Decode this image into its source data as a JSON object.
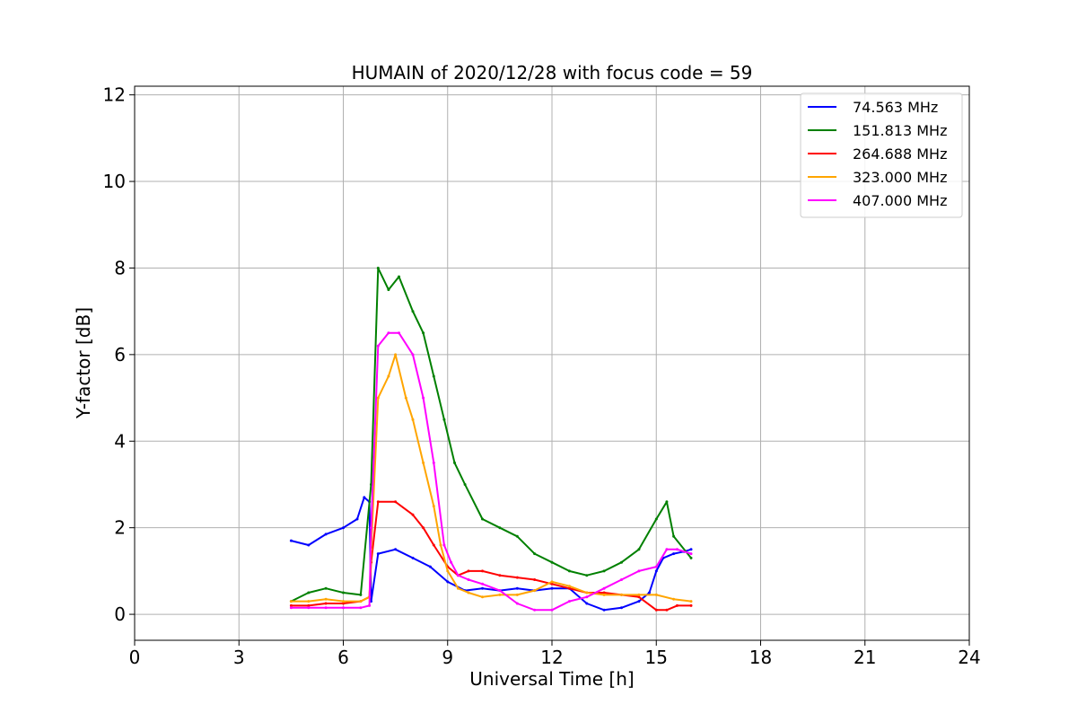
{
  "chart_data": {
    "type": "line",
    "title": "HUMAIN of 2020/12/28 with focus code = 59",
    "xlabel": "Universal Time [h]",
    "ylabel": "Y-factor [dB]",
    "xlim": [
      0,
      24
    ],
    "ylim": [
      -0.6,
      12.2
    ],
    "xticks": [
      0,
      3,
      6,
      9,
      12,
      15,
      18,
      21,
      24
    ],
    "xtick_labels": [
      "0",
      "3",
      "6",
      "9",
      "12",
      "15",
      "18",
      "21",
      "24"
    ],
    "yticks": [
      0,
      2,
      4,
      6,
      8,
      10,
      12
    ],
    "ytick_labels": [
      "0",
      "2",
      "4",
      "6",
      "8",
      "10",
      "12"
    ],
    "grid": true,
    "legend_position": "top-right",
    "series": [
      {
        "name": "74.563 MHz",
        "legend_label": " 74.563 MHz",
        "color": "#0000ff",
        "x": [
          4.5,
          5.0,
          5.5,
          6.0,
          6.4,
          6.6,
          6.75,
          6.8,
          7.0,
          7.5,
          8.0,
          8.5,
          9.0,
          9.5,
          10.0,
          10.5,
          11.0,
          11.5,
          12.0,
          12.5,
          13.0,
          13.5,
          14.0,
          14.5,
          14.8,
          15.0,
          15.2,
          15.5,
          15.8,
          16.0
        ],
        "y": [
          1.7,
          1.6,
          1.85,
          2.0,
          2.2,
          2.7,
          2.6,
          0.3,
          1.4,
          1.5,
          1.3,
          1.1,
          0.75,
          0.55,
          0.6,
          0.55,
          0.6,
          0.55,
          0.6,
          0.6,
          0.25,
          0.1,
          0.15,
          0.3,
          0.5,
          1.0,
          1.3,
          1.4,
          1.45,
          1.5
        ]
      },
      {
        "name": "151.813 MHz",
        "legend_label": "151.813 MHz",
        "color": "#008000",
        "x": [
          4.5,
          5.0,
          5.5,
          6.0,
          6.5,
          6.8,
          7.0,
          7.3,
          7.6,
          8.0,
          8.3,
          8.6,
          8.9,
          9.2,
          9.5,
          10.0,
          10.5,
          11.0,
          11.5,
          12.0,
          12.5,
          13.0,
          13.5,
          14.0,
          14.5,
          15.0,
          15.3,
          15.5,
          16.0
        ],
        "y": [
          0.3,
          0.5,
          0.6,
          0.5,
          0.45,
          3.0,
          8.0,
          7.5,
          7.8,
          7.0,
          6.5,
          5.5,
          4.5,
          3.5,
          3.0,
          2.2,
          2.0,
          1.8,
          1.4,
          1.2,
          1.0,
          0.9,
          1.0,
          1.2,
          1.5,
          2.2,
          2.6,
          1.8,
          1.3
        ]
      },
      {
        "name": "264.688 MHz",
        "legend_label": "264.688 MHz",
        "color": "#ff0000",
        "x": [
          4.5,
          5.0,
          5.5,
          6.0,
          6.5,
          6.75,
          6.8,
          7.0,
          7.5,
          8.0,
          8.3,
          8.6,
          9.0,
          9.3,
          9.6,
          10.0,
          10.5,
          11.0,
          11.5,
          12.0,
          12.5,
          13.0,
          13.5,
          14.0,
          14.5,
          15.0,
          15.3,
          15.6,
          16.0
        ],
        "y": [
          0.2,
          0.2,
          0.25,
          0.25,
          0.3,
          0.4,
          1.2,
          2.6,
          2.6,
          2.3,
          2.0,
          1.6,
          1.1,
          0.9,
          1.0,
          1.0,
          0.9,
          0.85,
          0.8,
          0.7,
          0.6,
          0.5,
          0.5,
          0.45,
          0.4,
          0.1,
          0.1,
          0.2,
          0.2
        ]
      },
      {
        "name": "323.000 MHz",
        "legend_label": "323.000 MHz",
        "color": "#ffa500",
        "x": [
          4.5,
          5.0,
          5.5,
          6.0,
          6.5,
          6.75,
          6.8,
          7.0,
          7.3,
          7.5,
          7.8,
          8.0,
          8.3,
          8.6,
          8.8,
          9.0,
          9.3,
          9.6,
          10.0,
          10.5,
          11.0,
          11.5,
          12.0,
          12.5,
          13.0,
          13.5,
          14.0,
          14.5,
          15.0,
          15.5,
          16.0
        ],
        "y": [
          0.3,
          0.3,
          0.35,
          0.3,
          0.3,
          0.4,
          1.5,
          5.0,
          5.5,
          6.0,
          5.0,
          4.5,
          3.5,
          2.5,
          1.6,
          1.0,
          0.6,
          0.5,
          0.4,
          0.45,
          0.45,
          0.55,
          0.75,
          0.65,
          0.5,
          0.45,
          0.45,
          0.45,
          0.45,
          0.35,
          0.3
        ]
      },
      {
        "name": "407.000 MHz",
        "legend_label": "407.000 MHz",
        "color": "#ff00ff",
        "x": [
          4.5,
          5.0,
          5.5,
          6.0,
          6.5,
          6.75,
          6.8,
          7.0,
          7.3,
          7.6,
          8.0,
          8.3,
          8.6,
          8.9,
          9.1,
          9.3,
          9.6,
          10.0,
          10.5,
          11.0,
          11.5,
          12.0,
          12.5,
          13.0,
          13.5,
          14.0,
          14.5,
          15.0,
          15.3,
          15.6,
          16.0
        ],
        "y": [
          0.15,
          0.15,
          0.15,
          0.15,
          0.15,
          0.2,
          2.0,
          6.2,
          6.5,
          6.5,
          6.0,
          5.0,
          3.5,
          1.6,
          1.2,
          0.9,
          0.8,
          0.7,
          0.55,
          0.25,
          0.1,
          0.1,
          0.3,
          0.4,
          0.6,
          0.8,
          1.0,
          1.1,
          1.5,
          1.5,
          1.4
        ]
      }
    ]
  }
}
